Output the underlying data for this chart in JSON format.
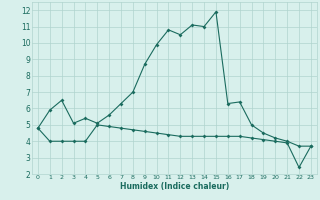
{
  "xlabel": "Humidex (Indice chaleur)",
  "x_values": [
    0,
    1,
    2,
    3,
    4,
    5,
    6,
    7,
    8,
    9,
    10,
    11,
    12,
    13,
    14,
    15,
    16,
    17,
    18,
    19,
    20,
    21,
    22,
    23
  ],
  "line1_y": [
    4.8,
    5.9,
    6.5,
    5.1,
    5.4,
    5.1,
    5.6,
    6.3,
    7.0,
    8.7,
    9.9,
    10.8,
    10.5,
    11.1,
    11.0,
    11.9,
    6.3,
    6.4,
    5.0,
    4.5,
    4.2,
    4.0,
    3.7,
    3.7
  ],
  "line2_y": [
    4.8,
    4.0,
    4.0,
    4.0,
    4.0,
    5.0,
    4.9,
    4.8,
    4.7,
    4.6,
    4.5,
    4.4,
    4.3,
    4.3,
    4.3,
    4.3,
    4.3,
    4.3,
    4.2,
    4.1,
    4.0,
    3.9,
    2.4,
    3.7
  ],
  "line_color": "#1a6b5e",
  "bg_color": "#d8f0ec",
  "grid_color": "#b0d4ce",
  "ylim": [
    2,
    12.5
  ],
  "xlim": [
    -0.5,
    23.5
  ],
  "yticks": [
    2,
    3,
    4,
    5,
    6,
    7,
    8,
    9,
    10,
    11,
    12
  ],
  "xticks": [
    0,
    1,
    2,
    3,
    4,
    5,
    6,
    7,
    8,
    9,
    10,
    11,
    12,
    13,
    14,
    15,
    16,
    17,
    18,
    19,
    20,
    21,
    22,
    23
  ]
}
